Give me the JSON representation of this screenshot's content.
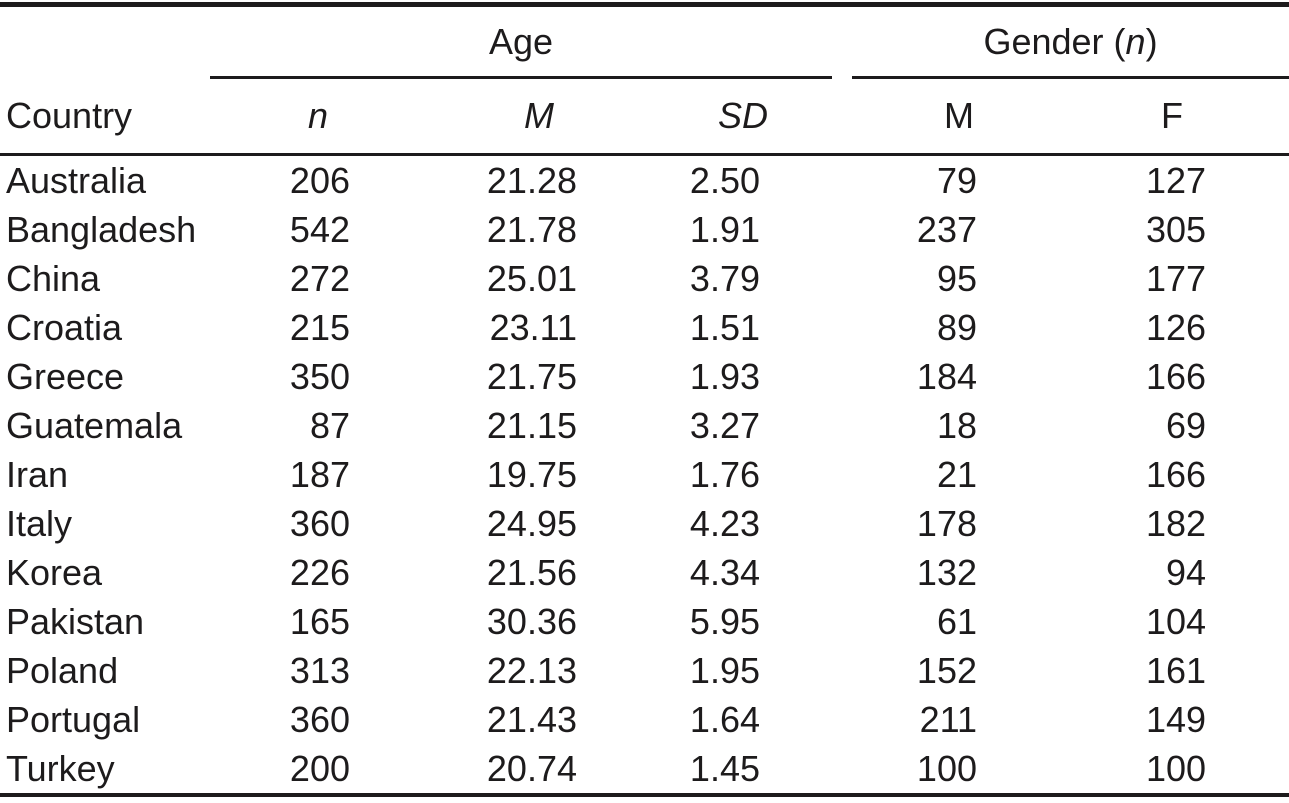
{
  "colors": {
    "text": "#1d1b1c",
    "rule": "#1d1b1c",
    "background": "#ffffff"
  },
  "table": {
    "corner_header": "Country",
    "group_age_label": "Age",
    "group_gender_prefix": "Gender (",
    "group_gender_n": "n",
    "group_gender_suffix": ")",
    "subheaders": {
      "age_n": "n",
      "age_m": "M",
      "age_sd": "SD",
      "gender_m": "M",
      "gender_f": "F"
    },
    "rows": [
      {
        "country": "Australia",
        "n": "206",
        "m": "21.28",
        "sd": "2.50",
        "male": "79",
        "female": "127"
      },
      {
        "country": "Bangladesh",
        "n": "542",
        "m": "21.78",
        "sd": "1.91",
        "male": "237",
        "female": "305"
      },
      {
        "country": "China",
        "n": "272",
        "m": "25.01",
        "sd": "3.79",
        "male": "95",
        "female": "177"
      },
      {
        "country": "Croatia",
        "n": "215",
        "m": "23.11",
        "sd": "1.51",
        "male": "89",
        "female": "126"
      },
      {
        "country": "Greece",
        "n": "350",
        "m": "21.75",
        "sd": "1.93",
        "male": "184",
        "female": "166"
      },
      {
        "country": "Guatemala",
        "n": "87",
        "m": "21.15",
        "sd": "3.27",
        "male": "18",
        "female": "69"
      },
      {
        "country": "Iran",
        "n": "187",
        "m": "19.75",
        "sd": "1.76",
        "male": "21",
        "female": "166"
      },
      {
        "country": "Italy",
        "n": "360",
        "m": "24.95",
        "sd": "4.23",
        "male": "178",
        "female": "182"
      },
      {
        "country": "Korea",
        "n": "226",
        "m": "21.56",
        "sd": "4.34",
        "male": "132",
        "female": "94"
      },
      {
        "country": "Pakistan",
        "n": "165",
        "m": "30.36",
        "sd": "5.95",
        "male": "61",
        "female": "104"
      },
      {
        "country": "Poland",
        "n": "313",
        "m": "22.13",
        "sd": "1.95",
        "male": "152",
        "female": "161"
      },
      {
        "country": "Portugal",
        "n": "360",
        "m": "21.43",
        "sd": "1.64",
        "male": "211",
        "female": "149"
      },
      {
        "country": "Turkey",
        "n": "200",
        "m": "20.74",
        "sd": "1.45",
        "male": "100",
        "female": "100"
      }
    ]
  }
}
